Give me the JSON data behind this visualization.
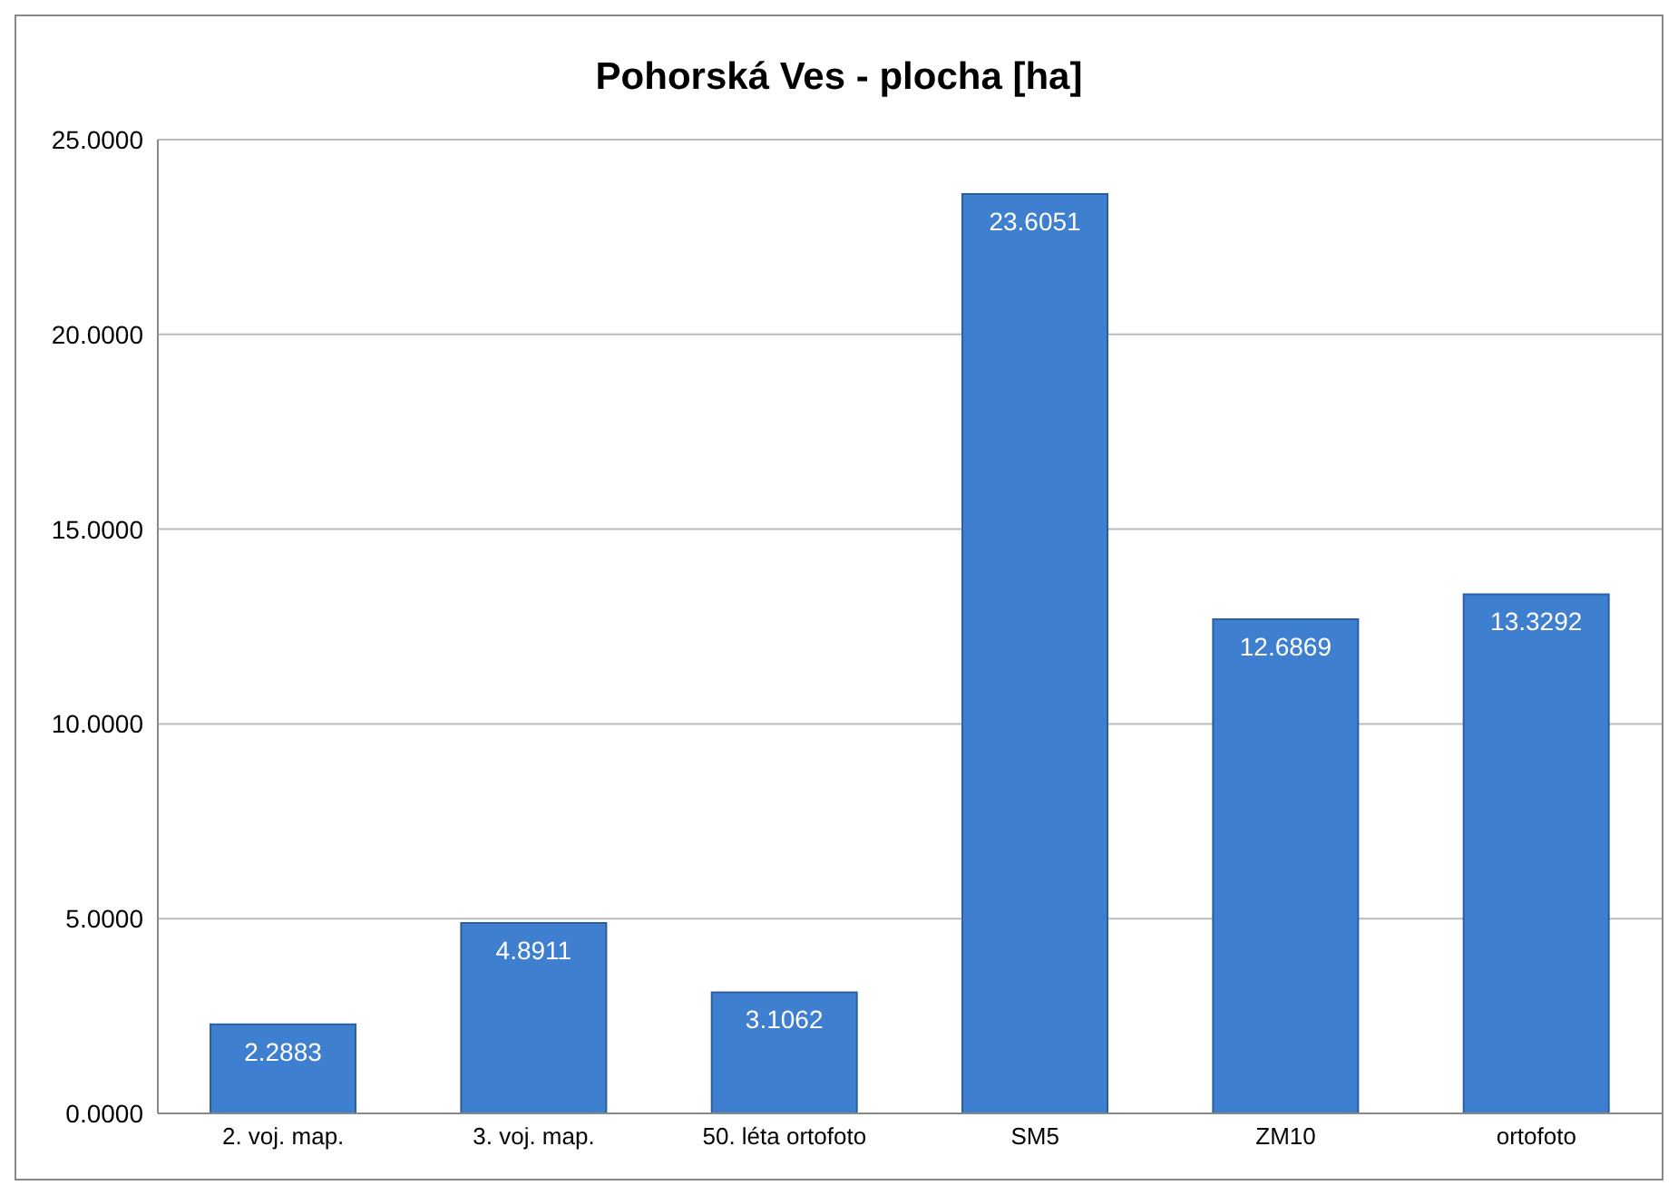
{
  "chart_data": {
    "type": "bar",
    "title": "Pohorská Ves - plocha [ha]",
    "categories": [
      "2. voj. map.",
      "3. voj. map.",
      "50. léta ortofoto",
      "SM5",
      "ZM10",
      "ortofoto"
    ],
    "values": [
      2.2883,
      4.8911,
      3.1062,
      23.6051,
      12.6869,
      13.3292
    ],
    "color": "#3f7fcf",
    "ylim": [
      0,
      25
    ],
    "yticks": [
      {
        "value": 0,
        "label": "0.0000"
      },
      {
        "value": 5,
        "label": "5.0000"
      },
      {
        "value": 10,
        "label": "10.0000"
      },
      {
        "value": 15,
        "label": "15.0000"
      },
      {
        "value": 20,
        "label": "20.0000"
      },
      {
        "value": 25,
        "label": "25.0000"
      }
    ],
    "grid": "y",
    "data_labels": true,
    "legend": false
  }
}
